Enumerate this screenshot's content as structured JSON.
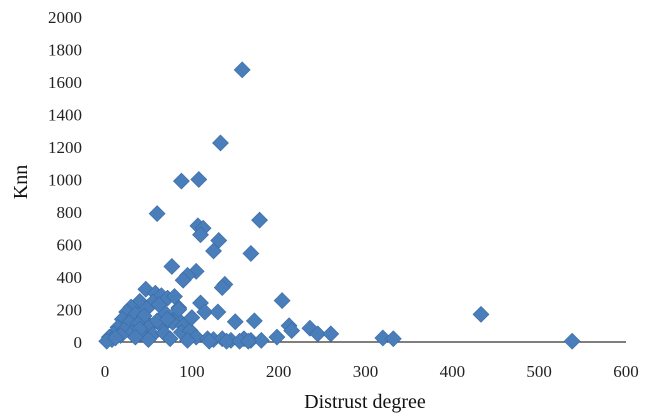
{
  "chart_data": {
    "type": "scatter",
    "title": "",
    "xlabel": "Distrust degree",
    "ylabel": "Knn",
    "xlim": [
      0,
      600
    ],
    "ylim": [
      0,
      2000
    ],
    "x_ticks": [
      0,
      100,
      200,
      300,
      400,
      500,
      600
    ],
    "y_ticks": [
      0,
      200,
      400,
      600,
      800,
      1000,
      1200,
      1400,
      1600,
      1800,
      2000
    ],
    "x_tick_labels": [
      "0",
      "100",
      "200",
      "300",
      "400",
      "500",
      "600"
    ],
    "y_tick_labels": [
      "0",
      "200",
      "400",
      "600",
      "800",
      "1000",
      "1200",
      "1400",
      "1600",
      "1800",
      "2000"
    ],
    "grid": false,
    "marker": "diamond",
    "marker_color": "#4a7ebb",
    "series": [
      {
        "points": [
          [
            158,
            1675
          ],
          [
            133,
            1225
          ],
          [
            88,
            990
          ],
          [
            108,
            1000
          ],
          [
            60,
            790
          ],
          [
            178,
            750
          ],
          [
            107,
            715
          ],
          [
            113,
            700
          ],
          [
            110,
            660
          ],
          [
            131,
            625
          ],
          [
            125,
            560
          ],
          [
            168,
            545
          ],
          [
            77,
            465
          ],
          [
            105,
            435
          ],
          [
            95,
            410
          ],
          [
            90,
            380
          ],
          [
            138,
            355
          ],
          [
            135,
            335
          ],
          [
            47,
            325
          ],
          [
            58,
            300
          ],
          [
            65,
            285
          ],
          [
            72,
            270
          ],
          [
            80,
            280
          ],
          [
            40,
            250
          ],
          [
            55,
            245
          ],
          [
            62,
            230
          ],
          [
            30,
            215
          ],
          [
            48,
            205
          ],
          [
            85,
            210
          ],
          [
            110,
            240
          ],
          [
            115,
            185
          ],
          [
            130,
            185
          ],
          [
            204,
            255
          ],
          [
            25,
            185
          ],
          [
            35,
            170
          ],
          [
            45,
            160
          ],
          [
            70,
            175
          ],
          [
            82,
            150
          ],
          [
            20,
            140
          ],
          [
            28,
            120
          ],
          [
            38,
            110
          ],
          [
            52,
            100
          ],
          [
            66,
            95
          ],
          [
            78,
            120
          ],
          [
            90,
            100
          ],
          [
            15,
            90
          ],
          [
            22,
            75
          ],
          [
            32,
            60
          ],
          [
            42,
            50
          ],
          [
            55,
            45
          ],
          [
            68,
            55
          ],
          [
            88,
            60
          ],
          [
            10,
            50
          ],
          [
            18,
            40
          ],
          [
            5,
            30
          ],
          [
            8,
            15
          ],
          [
            2,
            5
          ],
          [
            12,
            25
          ],
          [
            40,
            80
          ],
          [
            60,
            130
          ],
          [
            72,
            140
          ],
          [
            98,
            70
          ],
          [
            105,
            30
          ],
          [
            118,
            20
          ],
          [
            125,
            15
          ],
          [
            135,
            20
          ],
          [
            145,
            10
          ],
          [
            150,
            125
          ],
          [
            160,
            20
          ],
          [
            168,
            10
          ],
          [
            172,
            130
          ],
          [
            180,
            10
          ],
          [
            212,
            100
          ],
          [
            215,
            70
          ],
          [
            236,
            85
          ],
          [
            245,
            50
          ],
          [
            260,
            50
          ],
          [
            198,
            30
          ],
          [
            320,
            25
          ],
          [
            332,
            20
          ],
          [
            433,
            170
          ],
          [
            538,
            5
          ],
          [
            95,
            10
          ],
          [
            120,
            5
          ],
          [
            140,
            5
          ],
          [
            155,
            5
          ],
          [
            165,
            5
          ],
          [
            50,
            15
          ],
          [
            35,
            30
          ],
          [
            75,
            20
          ],
          [
            85,
            200
          ],
          [
            100,
            150
          ]
        ]
      }
    ]
  }
}
